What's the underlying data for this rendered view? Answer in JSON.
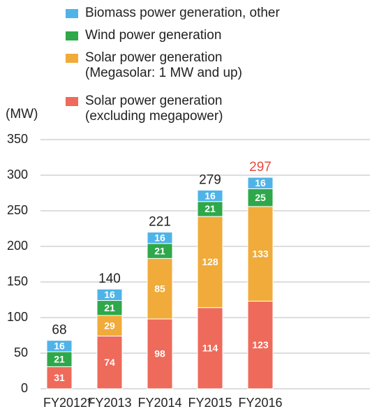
{
  "chart_data": {
    "type": "stacked_bar",
    "y_label": "(MW)",
    "categories": [
      "FY2012*",
      "FY2013",
      "FY2014",
      "FY2015",
      "FY2016"
    ],
    "series": [
      {
        "name": "Solar power generation\n(excluding megapower)",
        "color": "#ee6a5a",
        "values": [
          31,
          74,
          98,
          114,
          123
        ]
      },
      {
        "name": "Solar power generation\n(Megasolar: 1 MW and up)",
        "color": "#f0ab3a",
        "values": [
          null,
          29,
          85,
          128,
          133
        ]
      },
      {
        "name": "Wind power generation",
        "color": "#2ea84a",
        "values": [
          21,
          21,
          21,
          21,
          25
        ]
      },
      {
        "name": "Biomass power generation, other",
        "color": "#4fb3e8",
        "values": [
          16,
          16,
          16,
          16,
          16
        ]
      }
    ],
    "totals": [
      68,
      140,
      221,
      279,
      297
    ],
    "total_colors": [
      "#222222",
      "#222222",
      "#222222",
      "#222222",
      "#e8493a"
    ],
    "ylim": [
      0,
      350
    ],
    "yticks": [
      0,
      50,
      100,
      150,
      200,
      250,
      300,
      350
    ],
    "grid": true
  }
}
